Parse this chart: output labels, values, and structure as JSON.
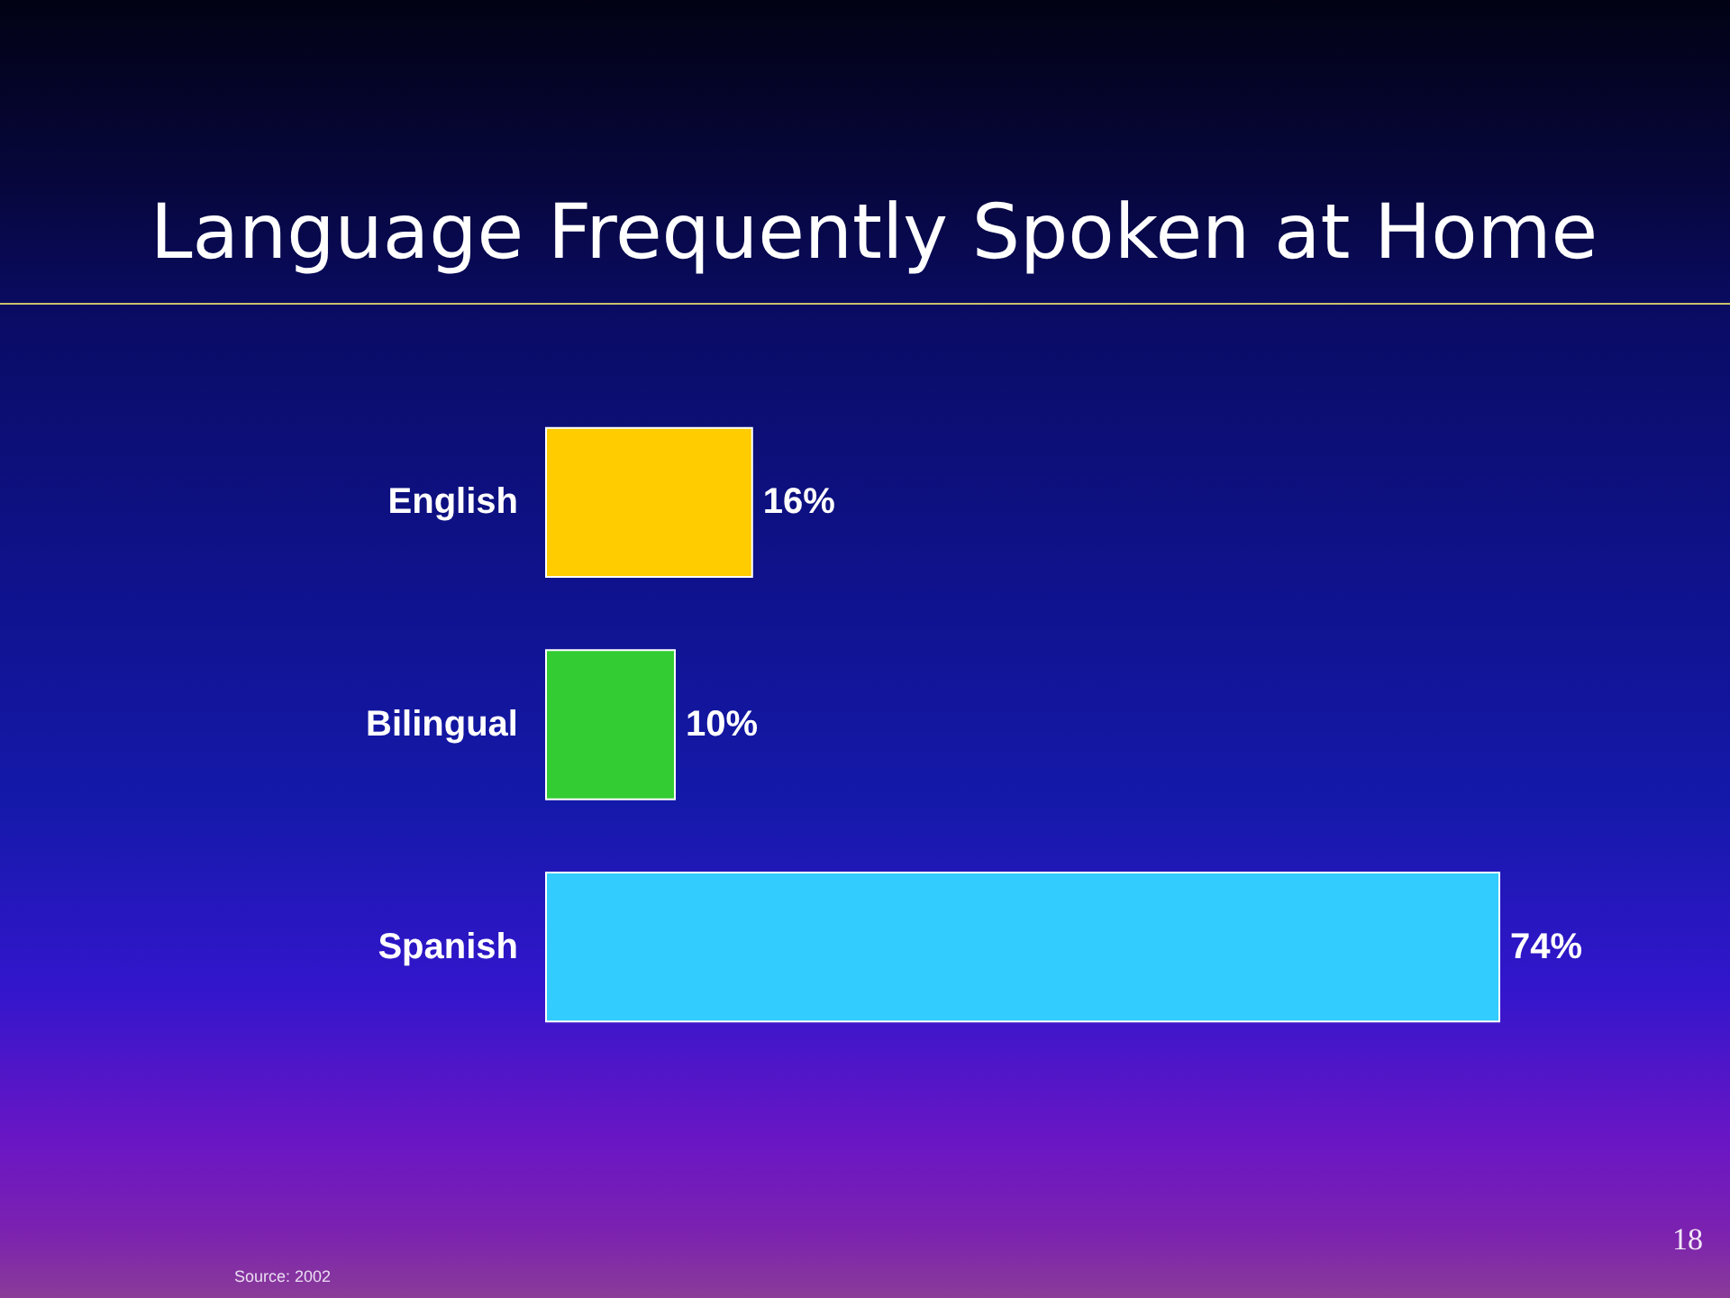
{
  "chart_data": {
    "type": "bar",
    "orientation": "horizontal",
    "title": "Language Frequently Spoken at Home",
    "categories": [
      "English",
      "Bilingual",
      "Spanish"
    ],
    "values": [
      16,
      10,
      74
    ],
    "colors": [
      "#ffcc00",
      "#33cc33",
      "#33ccff"
    ],
    "value_labels": [
      "16%",
      "10%",
      "74%"
    ],
    "annotations": [
      "Source: 2002",
      "18"
    ]
  }
}
